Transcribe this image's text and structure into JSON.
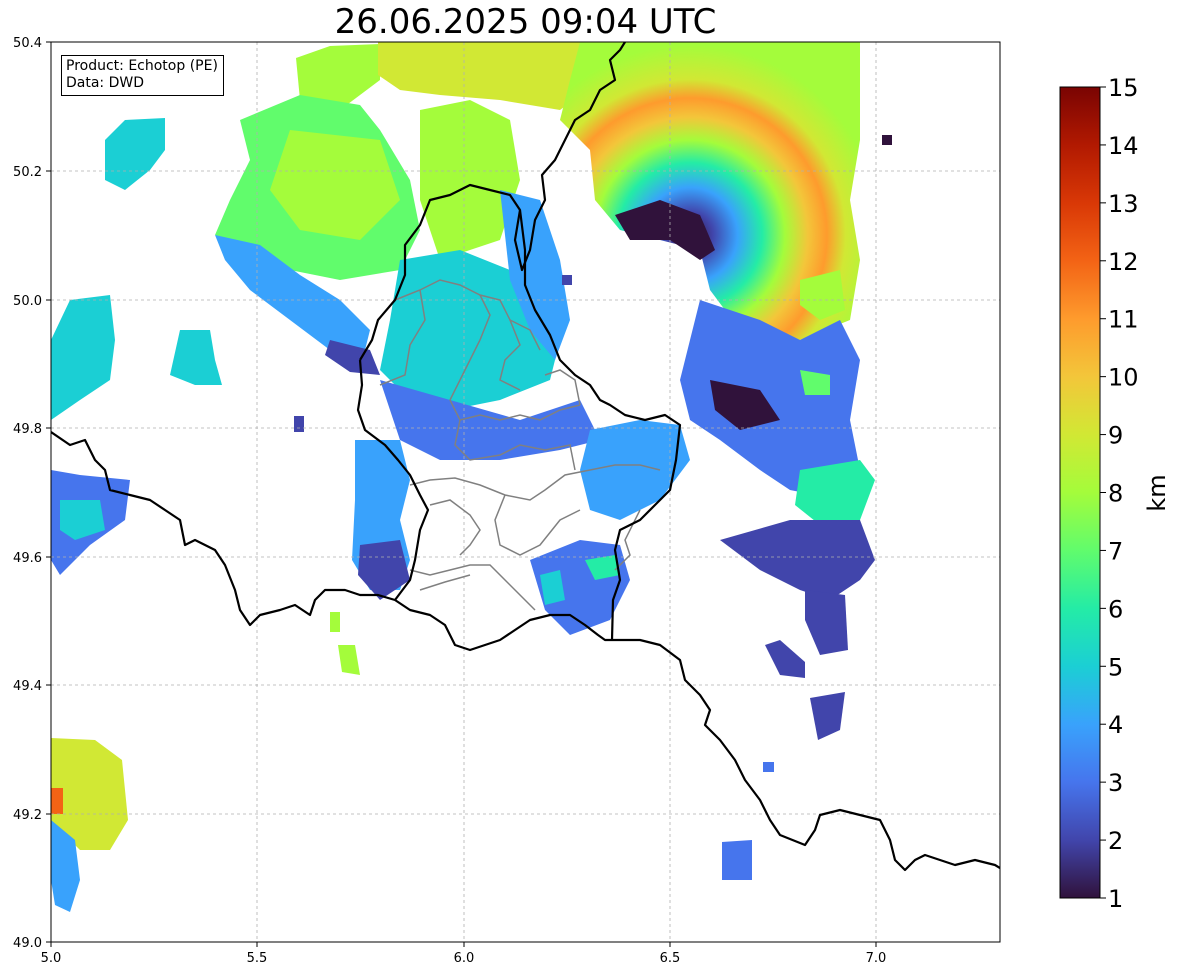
{
  "title": "26.06.2025 09:04 UTC",
  "info": {
    "product_line": "Product: Echotop (PE)",
    "data_line": "Data: DWD"
  },
  "map": {
    "lon_range": [
      5.0,
      7.3
    ],
    "lat_range": [
      49.0,
      50.4
    ],
    "x_ticks": [
      "5.0",
      "5.5",
      "6.0",
      "6.5",
      "7.0"
    ],
    "y_ticks": [
      "49.0",
      "49.2",
      "49.4",
      "49.6",
      "49.8",
      "50.0",
      "50.2",
      "50.4"
    ],
    "grid": true,
    "border_color": "#000000",
    "district_color": "#808080"
  },
  "colorbar": {
    "label": "km",
    "ticks": [
      "1",
      "2",
      "3",
      "4",
      "5",
      "6",
      "7",
      "8",
      "9",
      "10",
      "11",
      "12",
      "13",
      "14",
      "15"
    ],
    "range": [
      1,
      15
    ],
    "colors": [
      "#30123b",
      "#4145ab",
      "#4675ed",
      "#39a2fc",
      "#1bcfd4",
      "#24eca6",
      "#61fc6c",
      "#a4fc3b",
      "#d1e834",
      "#f3c63a",
      "#fe9b2d",
      "#f36315",
      "#d93806",
      "#b11901",
      "#7a0402"
    ]
  }
}
